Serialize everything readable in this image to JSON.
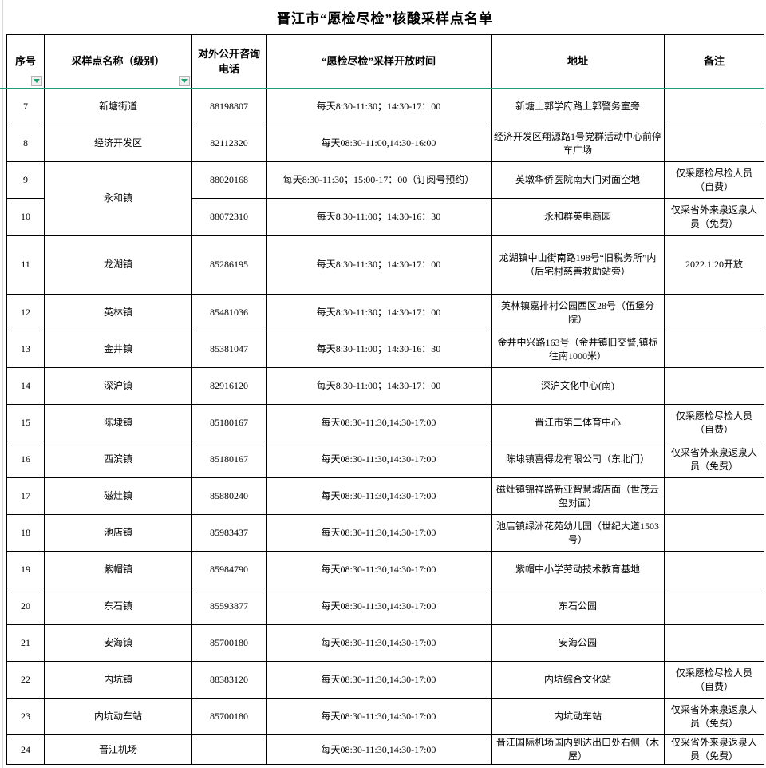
{
  "title": "晋江市“愿检尽检”核酸采样点名单",
  "columns": [
    {
      "label": "序号",
      "has_filter": true
    },
    {
      "label": "采样点名称（级别）",
      "has_filter": true
    },
    {
      "label": "对外公开咨询电话",
      "has_filter": false
    },
    {
      "label": "“愿检尽检”采样开放时间",
      "has_filter": false
    },
    {
      "label": "地址",
      "has_filter": false
    },
    {
      "label": "备注",
      "has_filter": false
    }
  ],
  "colors": {
    "header_underline_green": "#1f9e78",
    "filter_arrow_green": "#21a06e",
    "table_border": "#000000"
  },
  "rows": [
    {
      "no": "7",
      "name": "新塘街道",
      "phone": "88198807",
      "time": "每天8:30-11:30；14:30-17：00",
      "address": "新塘上郭学府路上郭警务室旁",
      "remark": ""
    },
    {
      "no": "8",
      "name": "经济开发区",
      "phone": "82112320",
      "time": "每天08:30-11:00,14:30-16:00",
      "address": "经济开发区翔源路1号党群活动中心前停车广场",
      "remark": ""
    },
    {
      "no": "9",
      "name": "永和镇",
      "name_rowspan": 2,
      "phone": "88020168",
      "time": "每天8:30-11:30；15:00-17：00（订阅号预约）",
      "address": "英墩华侨医院南大门对面空地",
      "remark": "仅采愿检尽检人员（自费）"
    },
    {
      "no": "10",
      "name": null,
      "phone": "88072310",
      "time": "每天8:30-11:00；14:30-16：30",
      "address": "永和群英电商园",
      "remark": "仅采省外来泉返泉人员（免费）"
    },
    {
      "no": "11",
      "name": "龙湖镇",
      "phone": "85286195",
      "time": "每天8:30-11:30；14:30-17：00",
      "address": "龙湖镇中山街南路198号“旧税务所”内（后宅村慈善救助站旁）",
      "remark": "2022.1.20开放"
    },
    {
      "no": "12",
      "name": "英林镇",
      "phone": "85481036",
      "time": "每天8:30-11:30；14:30-17：00",
      "address": "英林镇嘉排村公园西区28号（伍堡分院）",
      "remark": ""
    },
    {
      "no": "13",
      "name": "金井镇",
      "phone": "85381047",
      "time": "每天8:30-11:00；14:30-16：30",
      "address": "金井中兴路163号（金井镇旧交警,镇标往南1000米）",
      "remark": ""
    },
    {
      "no": "14",
      "name": "深沪镇",
      "phone": "82916120",
      "time": "每天8:30-11:00；14:30-17：00",
      "address": "深沪文化中心(南)",
      "remark": ""
    },
    {
      "no": "15",
      "name": "陈埭镇",
      "phone": "85180167",
      "time": "每天08:30-11:30,14:30-17:00",
      "address": "晋江市第二体育中心",
      "remark": "仅采愿检尽检人员（自费）"
    },
    {
      "no": "16",
      "name": "西滨镇",
      "phone": "85180167",
      "time": "每天08:30-11:30,14:30-17:00",
      "address": "陈埭镇喜得龙有限公司（东北门）",
      "remark": "仅采省外来泉返泉人员（免费）"
    },
    {
      "no": "17",
      "name": "磁灶镇",
      "phone": "85880240",
      "time": "每天08:30-11:30,14:30-17:00",
      "address": "磁灶镇锦祥路新亚智慧城店面（世茂云玺对面）",
      "remark": ""
    },
    {
      "no": "18",
      "name": "池店镇",
      "phone": "85983437",
      "time": "每天08:30-11:30,14:30-17:00",
      "address": "池店镇绿洲花苑幼儿园（世纪大道1503号）",
      "remark": ""
    },
    {
      "no": "19",
      "name": "紫帽镇",
      "phone": "85984790",
      "time": "每天08:30-11:30,14:30-17:00",
      "address": "紫帽中小学劳动技术教育基地",
      "remark": ""
    },
    {
      "no": "20",
      "name": "东石镇",
      "phone": "85593877",
      "time": "每天08:30-11:30,14:30-17:00",
      "address": "东石公园",
      "remark": ""
    },
    {
      "no": "21",
      "name": "安海镇",
      "phone": "85700180",
      "time": "每天08:30-11:30,14:30-17:00",
      "address": "安海公园",
      "remark": ""
    },
    {
      "no": "22",
      "name": "内坑镇",
      "phone": "88383120",
      "time": "每天08:30-11:30,14:30-17:00",
      "address": "内坑综合文化站",
      "remark": "仅采愿检尽检人员（自费）"
    },
    {
      "no": "23",
      "name": "内坑动车站",
      "phone": "85700180",
      "time": "每天08:30-11:30,14:30-17:00",
      "address": "内坑动车站",
      "remark": "仅采省外来泉返泉人员（免费）"
    },
    {
      "no": "24",
      "name": "晋江机场",
      "phone": "",
      "time": "每天08:30-11:30,14:30-17:00",
      "address": "晋江国际机场国内到达出口处右侧（木屋）",
      "remark": "仅采省外来泉返泉人员（免费）"
    }
  ]
}
